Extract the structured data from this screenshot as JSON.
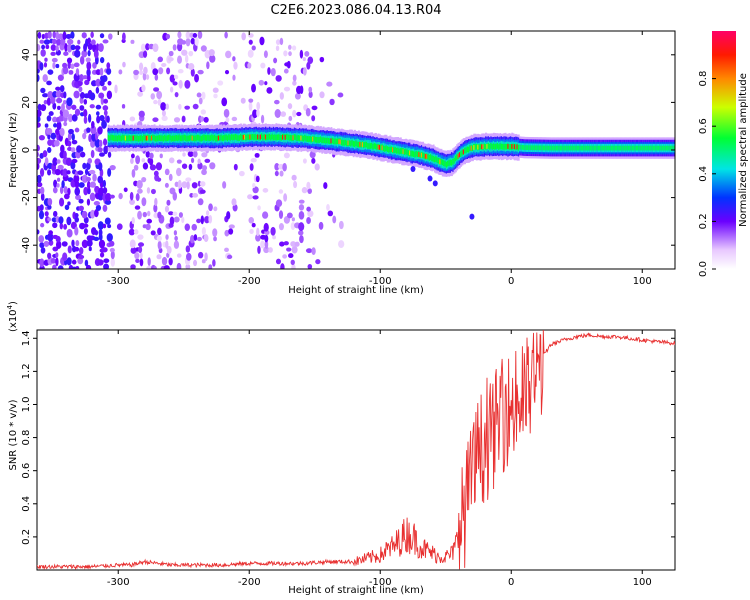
{
  "title": "C2E6.2023.086.04.13.R04",
  "chart_data": [
    {
      "type": "heatmap",
      "xlabel": "Height of straight line (km)",
      "ylabel": "Frequency (Hz)",
      "xlim": [
        -362,
        125
      ],
      "ylim": [
        -50,
        50
      ],
      "xticks": [
        -300,
        -200,
        -100,
        0,
        100
      ],
      "yticks": [
        -40,
        -20,
        0,
        20,
        40
      ],
      "colorbar": {
        "label": "Normalized spectral amplitude",
        "range": [
          0,
          1
        ],
        "ticks": [
          0.0,
          0.2,
          0.4,
          0.6,
          0.8
        ]
      },
      "ridge": {
        "x": [
          -305,
          -280,
          -250,
          -220,
          -200,
          -180,
          -160,
          -140,
          -125,
          -110,
          -100,
          -90,
          -80,
          -70,
          -60,
          -55,
          -50,
          -45,
          -40,
          -35,
          -30,
          -20,
          -10,
          0,
          10,
          30,
          60,
          90,
          125
        ],
        "freq": [
          5,
          5,
          5,
          5,
          5.5,
          5.5,
          5,
          4,
          3,
          2,
          1,
          0,
          -1,
          -2,
          -3.5,
          -5,
          -6,
          -5,
          -2,
          0,
          1,
          1.5,
          1.5,
          1.5,
          1,
          0.8,
          0.8,
          0.8,
          0.8
        ]
      }
    },
    {
      "type": "line",
      "xlabel": "Height of straight line (km)",
      "ylabel": "SNR (10 * v/v)",
      "yscale_label": "(x10",
      "yscale_exp": "4",
      "xlim": [
        -362,
        125
      ],
      "ylim": [
        0,
        1.45
      ],
      "xticks": [
        -300,
        -200,
        -100,
        0,
        100
      ],
      "yticks": [
        0.2,
        0.4,
        0.6,
        0.8,
        1.0,
        1.2,
        1.4
      ],
      "series": [
        {
          "color": "#e83030",
          "x": [
            -362,
            -340,
            -320,
            -300,
            -290,
            -280,
            -270,
            -260,
            -240,
            -220,
            -200,
            -180,
            -160,
            -140,
            -120,
            -110,
            -100,
            -95,
            -90,
            -85,
            -80,
            -75,
            -70,
            -65,
            -60,
            -55,
            -50,
            -45,
            -40,
            -35,
            -30,
            -25,
            -20,
            -15,
            -10,
            -5,
            0,
            5,
            10,
            15,
            20,
            25,
            30,
            40,
            50,
            60,
            70,
            80,
            90,
            100,
            110,
            125
          ],
          "values": [
            0.02,
            0.02,
            0.02,
            0.03,
            0.03,
            0.05,
            0.04,
            0.03,
            0.03,
            0.03,
            0.04,
            0.04,
            0.04,
            0.05,
            0.05,
            0.07,
            0.09,
            0.12,
            0.14,
            0.18,
            0.22,
            0.2,
            0.15,
            0.12,
            0.1,
            0.08,
            0.08,
            0.1,
            0.2,
            0.38,
            0.55,
            0.72,
            0.75,
            0.8,
            0.9,
            0.95,
            0.98,
            1.0,
            1.05,
            1.1,
            1.2,
            1.3,
            1.36,
            1.39,
            1.41,
            1.42,
            1.41,
            1.41,
            1.4,
            1.39,
            1.38,
            1.37
          ]
        }
      ]
    }
  ]
}
